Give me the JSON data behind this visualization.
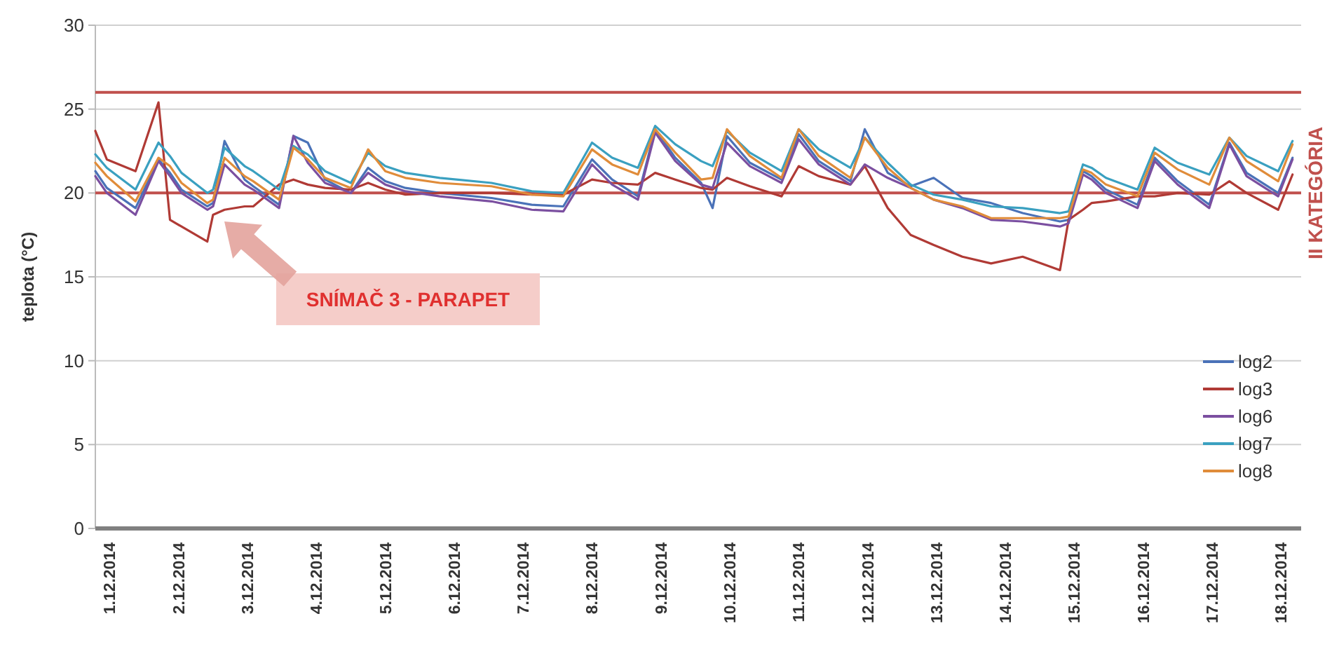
{
  "chart_data": {
    "type": "line",
    "ylabel": "teplota (°C)",
    "ylim": [
      0,
      30
    ],
    "yticks": [
      0,
      5,
      10,
      15,
      20,
      25,
      30
    ],
    "grid": "y",
    "legend": "right",
    "xlim": [
      "2014-11-30T19:00",
      "2014-12-18T07:00"
    ],
    "xticks": [
      {
        "value": "2014-12-01",
        "label": "1.12.2014"
      },
      {
        "value": "2014-12-02",
        "label": "2.12.2014"
      },
      {
        "value": "2014-12-03",
        "label": "3.12.2014"
      },
      {
        "value": "2014-12-04",
        "label": "4.12.2014"
      },
      {
        "value": "2014-12-05",
        "label": "5.12.2014"
      },
      {
        "value": "2014-12-06",
        "label": "6.12.2014"
      },
      {
        "value": "2014-12-07",
        "label": "7.12.2014"
      },
      {
        "value": "2014-12-08",
        "label": "8.12.2014"
      },
      {
        "value": "2014-12-09",
        "label": "9.12.2014"
      },
      {
        "value": "2014-12-10",
        "label": "10.12.2014"
      },
      {
        "value": "2014-12-11",
        "label": "11.12.2014"
      },
      {
        "value": "2014-12-12",
        "label": "12.12.2014"
      },
      {
        "value": "2014-12-13",
        "label": "13.12.2014"
      },
      {
        "value": "2014-12-14",
        "label": "14.12.2014"
      },
      {
        "value": "2014-12-15",
        "label": "15.12.2014"
      },
      {
        "value": "2014-12-16",
        "label": "16.12.2014"
      },
      {
        "value": "2014-12-17",
        "label": "17.12.2014"
      },
      {
        "value": "2014-12-18",
        "label": "18.12.2014"
      }
    ],
    "x": [
      "2014-11-30T19:00",
      "2014-11-30T23:00",
      "2014-12-01T09:00",
      "2014-12-01T17:00",
      "2014-12-01T21:00",
      "2014-12-02T01:00",
      "2014-12-02T10:00",
      "2014-12-02T12:00",
      "2014-12-02T16:00",
      "2014-12-02T23:00",
      "2014-12-03T02:00",
      "2014-12-03T11:00",
      "2014-12-03T16:00",
      "2014-12-03T21:00",
      "2014-12-04T03:00",
      "2014-12-04T12:00",
      "2014-12-04T18:00",
      "2014-12-05T00:00",
      "2014-12-05T07:00",
      "2014-12-05T19:00",
      "2014-12-06T13:00",
      "2014-12-07T03:00",
      "2014-12-07T14:00",
      "2014-12-08T00:00",
      "2014-12-08T07:00",
      "2014-12-08T16:00",
      "2014-12-08T22:00",
      "2014-12-09T05:00",
      "2014-12-09T14:00",
      "2014-12-09T18:00",
      "2014-12-09T23:00",
      "2014-12-10T07:00",
      "2014-12-10T18:00",
      "2014-12-11T00:00",
      "2014-12-11T07:00",
      "2014-12-11T18:00",
      "2014-12-11T23:00",
      "2014-12-12T07:00",
      "2014-12-12T15:00",
      "2014-12-12T23:00",
      "2014-12-13T09:00",
      "2014-12-13T19:00",
      "2014-12-14T06:00",
      "2014-12-14T19:00",
      "2014-12-14T22:00",
      "2014-12-15T03:00",
      "2014-12-15T06:00",
      "2014-12-15T11:00",
      "2014-12-15T22:00",
      "2014-12-16T04:00",
      "2014-12-16T12:00",
      "2014-12-16T23:00",
      "2014-12-17T06:00",
      "2014-12-17T12:00",
      "2014-12-17T23:00",
      "2014-12-18T04:00"
    ],
    "series": [
      {
        "name": "log2",
        "color": "#4a72b8",
        "values": [
          21.3,
          20.3,
          19.1,
          22.0,
          21.2,
          20.2,
          19.2,
          19.4,
          23.1,
          20.8,
          20.4,
          19.3,
          23.4,
          23.0,
          20.8,
          20.0,
          21.5,
          20.7,
          20.3,
          20.0,
          19.7,
          19.3,
          19.2,
          22.0,
          20.8,
          19.8,
          23.8,
          22.1,
          20.6,
          19.1,
          23.4,
          21.8,
          20.8,
          23.5,
          21.9,
          20.7,
          23.8,
          21.2,
          20.4,
          20.9,
          19.7,
          19.4,
          18.8,
          18.3,
          18.4,
          21.3,
          21.0,
          20.2,
          19.3,
          22.1,
          20.7,
          19.3,
          23.0,
          21.2,
          20.0,
          22.1
        ]
      },
      {
        "name": "log3",
        "color": "#b03a35",
        "values": [
          23.7,
          22.0,
          21.3,
          25.4,
          18.4,
          18.0,
          17.1,
          18.7,
          19.0,
          19.2,
          19.2,
          20.5,
          20.8,
          20.5,
          20.3,
          20.2,
          20.6,
          20.2,
          19.9,
          20.0,
          20.0,
          19.9,
          19.9,
          20.8,
          20.6,
          20.5,
          21.2,
          20.8,
          20.3,
          20.2,
          20.9,
          20.4,
          19.8,
          21.6,
          21.0,
          20.5,
          21.6,
          19.1,
          17.5,
          16.9,
          16.2,
          15.8,
          16.2,
          15.4,
          18.4,
          19.0,
          19.4,
          19.5,
          19.8,
          19.8,
          20.0,
          19.9,
          20.7,
          20.0,
          19.0,
          21.1
        ]
      },
      {
        "name": "log6",
        "color": "#7b4fa0",
        "values": [
          21.0,
          20.0,
          18.7,
          21.9,
          21.0,
          20.0,
          19.0,
          19.2,
          21.7,
          20.5,
          20.2,
          19.1,
          23.4,
          21.8,
          20.6,
          20.0,
          21.2,
          20.5,
          20.1,
          19.8,
          19.5,
          19.0,
          18.9,
          21.7,
          20.5,
          19.6,
          23.6,
          21.9,
          20.5,
          20.3,
          23.0,
          21.6,
          20.6,
          23.2,
          21.7,
          20.5,
          21.7,
          20.9,
          20.3,
          19.6,
          19.1,
          18.4,
          18.3,
          18.0,
          18.2,
          21.1,
          20.8,
          20.0,
          19.1,
          21.9,
          20.5,
          19.1,
          22.9,
          21.0,
          19.8,
          22.0
        ]
      },
      {
        "name": "log7",
        "color": "#3aa0c0",
        "values": [
          22.3,
          21.5,
          20.2,
          23.0,
          22.2,
          21.2,
          20.0,
          20.2,
          22.7,
          21.6,
          21.3,
          20.2,
          22.8,
          22.3,
          21.3,
          20.6,
          22.4,
          21.6,
          21.2,
          20.9,
          20.6,
          20.1,
          20.0,
          23.0,
          22.1,
          21.5,
          24.0,
          22.9,
          21.9,
          21.6,
          23.7,
          22.4,
          21.3,
          23.8,
          22.6,
          21.5,
          23.3,
          21.8,
          20.5,
          19.9,
          19.6,
          19.2,
          19.1,
          18.8,
          18.9,
          21.7,
          21.5,
          20.9,
          20.2,
          22.7,
          21.8,
          21.1,
          23.3,
          22.2,
          21.3,
          23.1
        ]
      },
      {
        "name": "log8",
        "color": "#e08c3a",
        "values": [
          21.8,
          21.0,
          19.5,
          22.1,
          21.6,
          20.6,
          19.4,
          19.6,
          22.1,
          21.0,
          20.7,
          19.6,
          22.7,
          22.0,
          20.9,
          20.3,
          22.6,
          21.3,
          20.9,
          20.6,
          20.4,
          19.9,
          19.8,
          22.6,
          21.7,
          21.1,
          23.8,
          22.4,
          20.8,
          20.9,
          23.8,
          22.2,
          20.9,
          23.8,
          22.2,
          20.9,
          23.3,
          21.5,
          20.3,
          19.6,
          19.2,
          18.5,
          18.5,
          18.5,
          18.6,
          21.4,
          21.2,
          20.5,
          19.8,
          22.4,
          21.4,
          20.5,
          23.3,
          21.9,
          20.7,
          22.9
        ]
      }
    ],
    "ref_lines": [
      {
        "axis": "y",
        "value": 26,
        "label": null,
        "color": "#c0504d"
      },
      {
        "axis": "y",
        "value": 20,
        "label": "II  KATEGÓRIA",
        "color": "#c0504d"
      }
    ],
    "annotations": [
      "SNÍMAČ  3 - PARAPET"
    ]
  }
}
